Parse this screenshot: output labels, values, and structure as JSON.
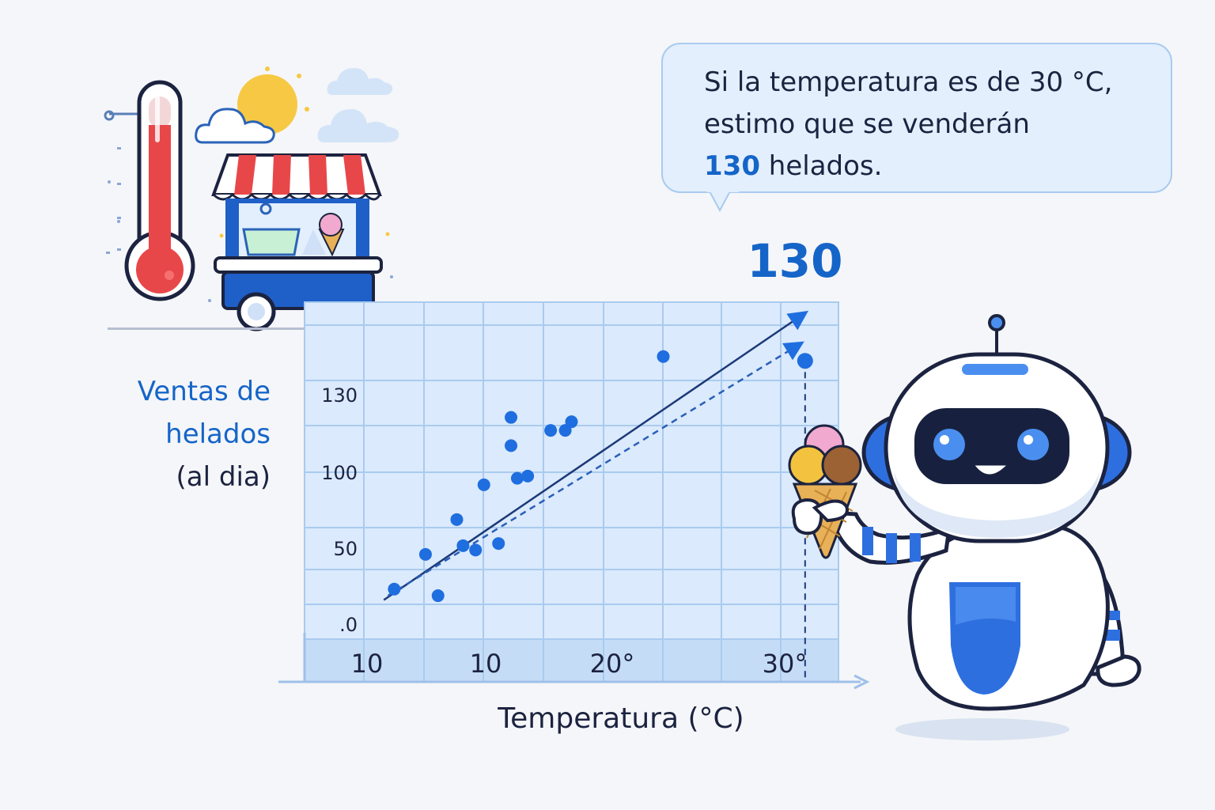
{
  "speech": {
    "line1": "Si la temperatura es de 30 °C,",
    "line2": "estimo que se venderán",
    "value": "130",
    "unit": "helados."
  },
  "prediction_label": "130",
  "icons": [
    "thermometer-icon",
    "sun-icon",
    "cloud-icon",
    "ice-cream-cart-icon",
    "robot-icon",
    "ice-cream-cone-icon"
  ],
  "colors": {
    "accent": "#1565c8",
    "point": "#1f6ee0",
    "plot_bg": "#dbeafc",
    "grid": "#a9cbef",
    "thermometer_red": "#e8474a"
  },
  "chart_data": {
    "type": "scatter",
    "ylabel": [
      "Ventas de",
      "helados",
      "(al dia)"
    ],
    "xlabel": "Temperatura (°C)",
    "x_tick_labels": [
      "10",
      "10",
      "20°",
      "30°"
    ],
    "y_tick_labels": [
      ".0",
      "50",
      "100",
      "130"
    ],
    "series": [
      {
        "points": [
          [
            10.3,
            25
          ],
          [
            11.8,
            41
          ],
          [
            12.4,
            22
          ],
          [
            13.3,
            57
          ],
          [
            13.6,
            45
          ],
          [
            14.2,
            43
          ],
          [
            14.6,
            73
          ],
          [
            15.3,
            46
          ],
          [
            15.9,
            91
          ],
          [
            15.9,
            104
          ],
          [
            16.2,
            76
          ],
          [
            16.7,
            77
          ],
          [
            17.8,
            98
          ],
          [
            18.5,
            98
          ],
          [
            18.8,
            102
          ],
          [
            23.2,
            132
          ]
        ]
      }
    ],
    "trend_lines": [
      {
        "from": [
          9.8,
          20
        ],
        "to": [
          30.0,
          152
        ]
      },
      {
        "from": [
          10.0,
          22
        ],
        "to": [
          29.8,
          138
        ]
      }
    ],
    "prediction": {
      "x": 30,
      "y": 130
    },
    "xlim": [
      6.0,
      31.6
    ],
    "ylim": [
      2,
      157
    ],
    "grid": true
  }
}
